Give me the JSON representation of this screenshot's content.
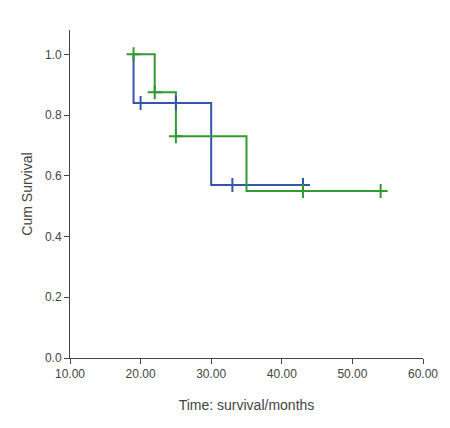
{
  "chart_data": {
    "type": "line",
    "xlabel": "Time: survival/months",
    "ylabel": "Cum Survival",
    "series": [
      {
        "type": "step",
        "color": "#3355aa",
        "x": [
          19,
          19,
          20,
          20,
          25,
          25,
          30,
          30,
          33,
          33,
          43
        ],
        "values": [
          1.0,
          0.84,
          0.84,
          0.84,
          0.84,
          0.84,
          0.84,
          0.57,
          0.57,
          0.57,
          0.57
        ]
      },
      {
        "type": "step",
        "color": "#339933",
        "x": [
          19,
          19,
          22,
          22,
          25,
          25,
          30,
          30,
          35,
          35,
          43,
          43,
          54
        ],
        "values": [
          1.0,
          1.0,
          1.0,
          0.875,
          0.875,
          0.73,
          0.73,
          0.73,
          0.73,
          0.55,
          0.55,
          0.55,
          0.55
        ]
      },
      {
        "type": "scatter",
        "marker": "plus",
        "color": "#3355aa",
        "x": [
          20,
          25,
          33,
          43
        ],
        "values": [
          0.84,
          0.84,
          0.57,
          0.57
        ]
      },
      {
        "type": "scatter",
        "marker": "plus",
        "color": "#339933",
        "x": [
          19,
          22,
          25,
          43,
          54
        ],
        "values": [
          1.0,
          0.875,
          0.73,
          0.55,
          0.55
        ]
      }
    ],
    "xlim": [
      10,
      60
    ],
    "ylim": [
      0.0,
      1.08
    ],
    "xticks": [
      {
        "value": 10,
        "label": "10.00"
      },
      {
        "value": 20,
        "label": "20.00"
      },
      {
        "value": 30,
        "label": "30.00"
      },
      {
        "value": 40,
        "label": "40.00"
      },
      {
        "value": 50,
        "label": "50.00"
      },
      {
        "value": 60,
        "label": "60.00"
      }
    ],
    "yticks": [
      {
        "value": 0.0,
        "label": "0.0"
      },
      0.2,
      0.4,
      0.6,
      0.8,
      {
        "value": 1.0,
        "label": "1.0"
      }
    ],
    "grid": false
  }
}
